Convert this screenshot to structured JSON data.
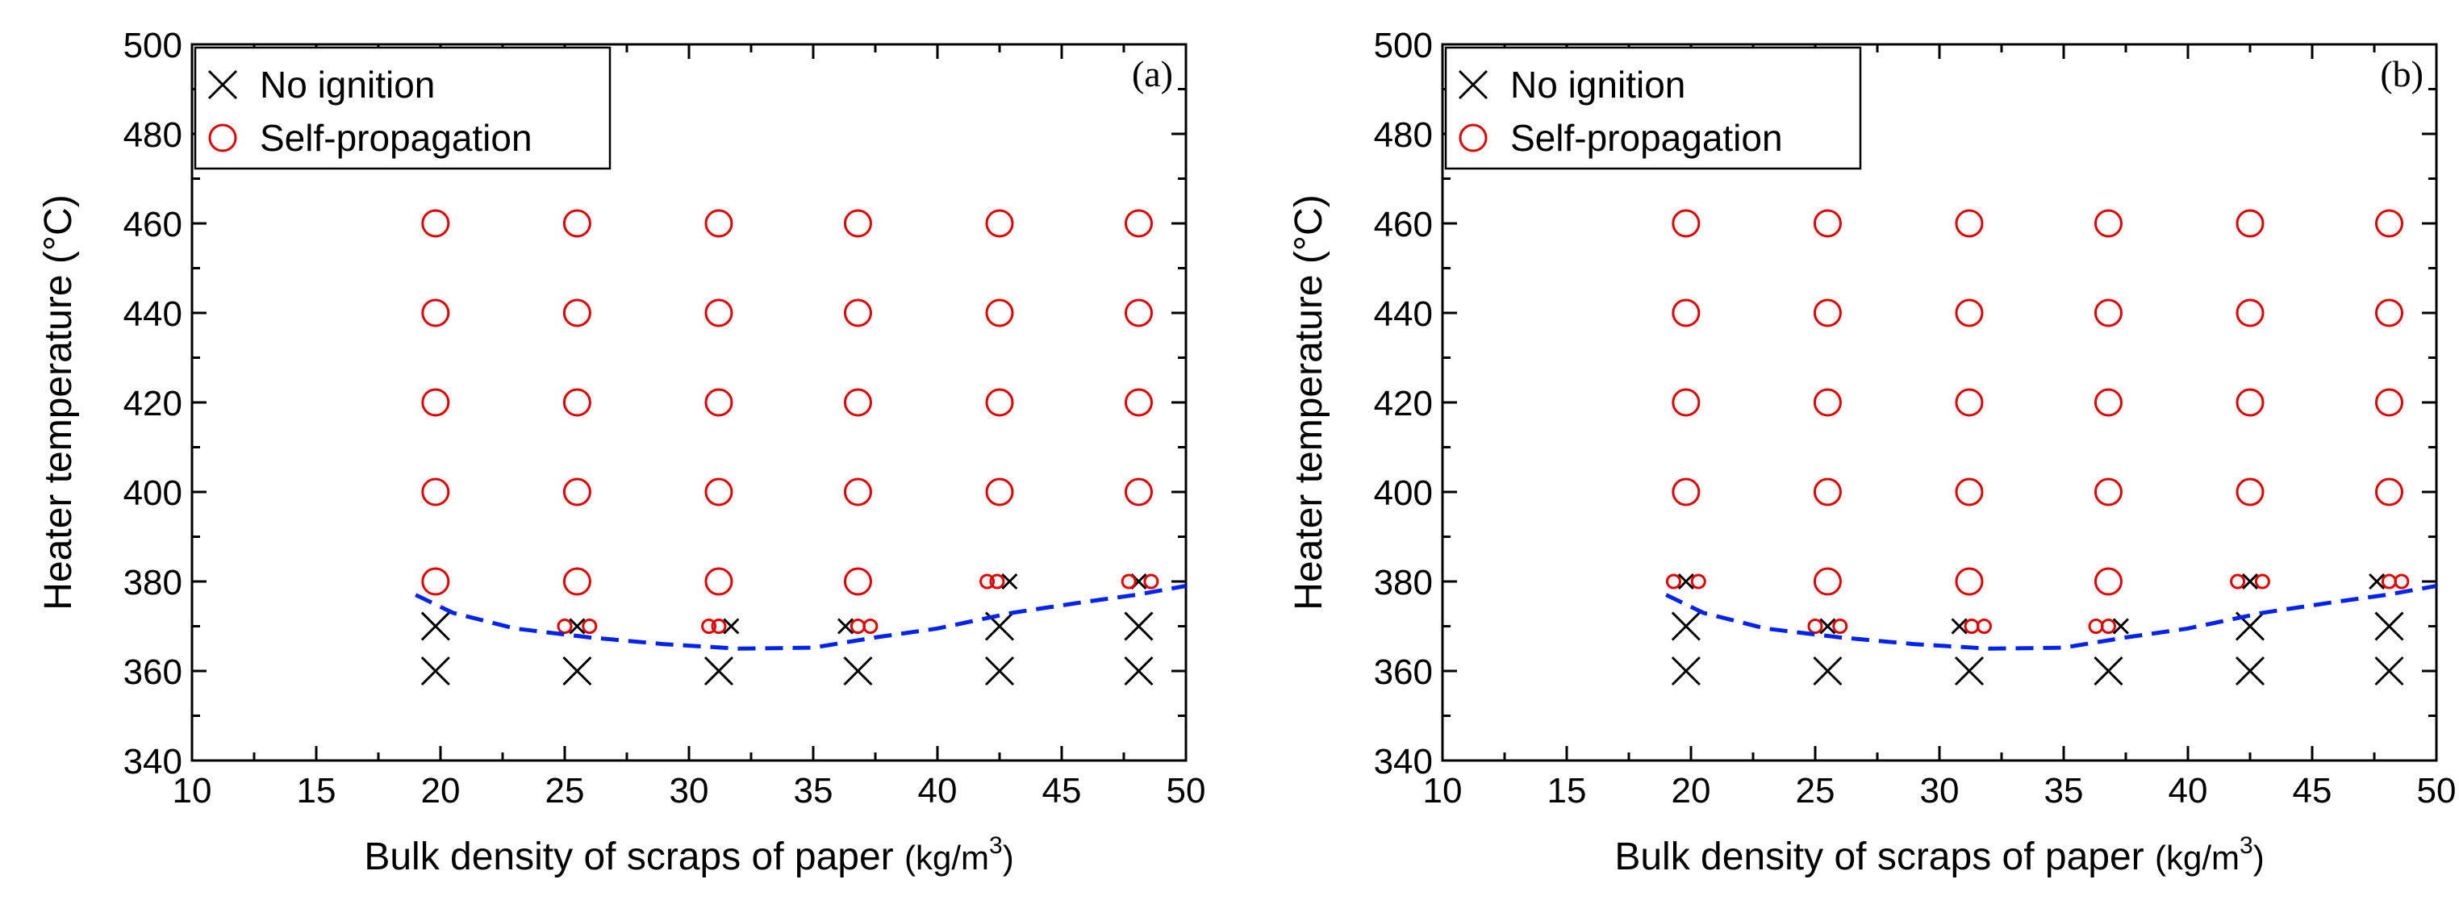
{
  "chart_data": [
    {
      "type": "scatter",
      "panel_label": "(a)",
      "xlabel": "Bulk density of scraps of paper",
      "xlabel_unit_prefix": "(kg/m",
      "xlabel_unit_sup": "3",
      "xlabel_unit_suffix": ")",
      "ylabel": "Heater temperature (°C)",
      "xlim": [
        10,
        50
      ],
      "ylim": [
        340,
        500
      ],
      "xticks": [
        "10",
        "15",
        "20",
        "25",
        "30",
        "35",
        "40",
        "45",
        "50"
      ],
      "yticks": [
        "340",
        "360",
        "380",
        "400",
        "420",
        "440",
        "460",
        "480",
        "500"
      ],
      "legend_position": "top-left",
      "legend": {
        "no_ignition": "No ignition",
        "self_propagation": "Self-propagation"
      },
      "series": [
        {
          "name": "No ignition",
          "marker": "cross",
          "points": [
            {
              "x": 19.8,
              "y": 360,
              "size": "large"
            },
            {
              "x": 19.8,
              "y": 370,
              "size": "large"
            },
            {
              "x": 25.5,
              "y": 360,
              "size": "large"
            },
            {
              "x": 25.5,
              "y": 370,
              "size": "small"
            },
            {
              "x": 31.2,
              "y": 360,
              "size": "large"
            },
            {
              "x": 31.7,
              "y": 370,
              "size": "small"
            },
            {
              "x": 36.8,
              "y": 360,
              "size": "large"
            },
            {
              "x": 36.3,
              "y": 370,
              "size": "small"
            },
            {
              "x": 42.5,
              "y": 360,
              "size": "large"
            },
            {
              "x": 42.5,
              "y": 370,
              "size": "large"
            },
            {
              "x": 42.9,
              "y": 380,
              "size": "small"
            },
            {
              "x": 48.1,
              "y": 360,
              "size": "large"
            },
            {
              "x": 48.1,
              "y": 370,
              "size": "large"
            },
            {
              "x": 48.1,
              "y": 380,
              "size": "small"
            }
          ]
        },
        {
          "name": "Self-propagation",
          "marker": "circle",
          "points": [
            {
              "x": 19.8,
              "y": 380,
              "size": "large"
            },
            {
              "x": 19.8,
              "y": 400,
              "size": "large"
            },
            {
              "x": 19.8,
              "y": 420,
              "size": "large"
            },
            {
              "x": 19.8,
              "y": 440,
              "size": "large"
            },
            {
              "x": 19.8,
              "y": 460,
              "size": "large"
            },
            {
              "x": 25.5,
              "y": 380,
              "size": "large"
            },
            {
              "x": 25.5,
              "y": 400,
              "size": "large"
            },
            {
              "x": 25.5,
              "y": 420,
              "size": "large"
            },
            {
              "x": 25.5,
              "y": 440,
              "size": "large"
            },
            {
              "x": 25.5,
              "y": 460,
              "size": "large"
            },
            {
              "x": 31.2,
              "y": 380,
              "size": "large"
            },
            {
              "x": 31.2,
              "y": 400,
              "size": "large"
            },
            {
              "x": 31.2,
              "y": 420,
              "size": "large"
            },
            {
              "x": 31.2,
              "y": 440,
              "size": "large"
            },
            {
              "x": 31.2,
              "y": 460,
              "size": "large"
            },
            {
              "x": 36.8,
              "y": 380,
              "size": "large"
            },
            {
              "x": 36.8,
              "y": 400,
              "size": "large"
            },
            {
              "x": 36.8,
              "y": 420,
              "size": "large"
            },
            {
              "x": 36.8,
              "y": 440,
              "size": "large"
            },
            {
              "x": 36.8,
              "y": 460,
              "size": "large"
            },
            {
              "x": 42.5,
              "y": 400,
              "size": "large"
            },
            {
              "x": 42.5,
              "y": 420,
              "size": "large"
            },
            {
              "x": 42.5,
              "y": 440,
              "size": "large"
            },
            {
              "x": 42.5,
              "y": 460,
              "size": "large"
            },
            {
              "x": 48.1,
              "y": 400,
              "size": "large"
            },
            {
              "x": 48.1,
              "y": 420,
              "size": "large"
            },
            {
              "x": 48.1,
              "y": 440,
              "size": "large"
            },
            {
              "x": 48.1,
              "y": 460,
              "size": "large"
            },
            {
              "x": 25.0,
              "y": 370,
              "size": "small"
            },
            {
              "x": 26.0,
              "y": 370,
              "size": "small"
            },
            {
              "x": 30.8,
              "y": 370,
              "size": "small"
            },
            {
              "x": 31.2,
              "y": 370,
              "size": "small"
            },
            {
              "x": 36.8,
              "y": 370,
              "size": "small"
            },
            {
              "x": 37.3,
              "y": 370,
              "size": "small"
            },
            {
              "x": 42.0,
              "y": 380,
              "size": "small"
            },
            {
              "x": 42.4,
              "y": 380,
              "size": "small"
            },
            {
              "x": 47.7,
              "y": 380,
              "size": "small"
            },
            {
              "x": 48.6,
              "y": 380,
              "size": "small"
            }
          ]
        },
        {
          "name": "Ignition boundary",
          "marker": "dashed-line",
          "points": [
            {
              "x": 19.0,
              "y": 377
            },
            {
              "x": 20.5,
              "y": 373
            },
            {
              "x": 23.0,
              "y": 369.5
            },
            {
              "x": 26.0,
              "y": 367.5
            },
            {
              "x": 29.0,
              "y": 366
            },
            {
              "x": 32.0,
              "y": 365
            },
            {
              "x": 35.0,
              "y": 365.2
            },
            {
              "x": 37.5,
              "y": 367.5
            },
            {
              "x": 40.0,
              "y": 369.5
            },
            {
              "x": 43.0,
              "y": 373
            },
            {
              "x": 46.0,
              "y": 375.5
            },
            {
              "x": 48.0,
              "y": 377
            },
            {
              "x": 50.0,
              "y": 379
            }
          ]
        }
      ]
    },
    {
      "type": "scatter",
      "panel_label": "(b)",
      "xlabel": "Bulk density of scraps of paper",
      "xlabel_unit_prefix": "(kg/m",
      "xlabel_unit_sup": "3",
      "xlabel_unit_suffix": ")",
      "ylabel": "Heater temperature (°C)",
      "xlim": [
        10,
        50
      ],
      "ylim": [
        340,
        500
      ],
      "xticks": [
        "10",
        "15",
        "20",
        "25",
        "30",
        "35",
        "40",
        "45",
        "50"
      ],
      "yticks": [
        "340",
        "360",
        "380",
        "400",
        "420",
        "440",
        "460",
        "480",
        "500"
      ],
      "legend_position": "top-left",
      "legend": {
        "no_ignition": "No ignition",
        "self_propagation": "Self-propagation"
      },
      "series": [
        {
          "name": "No ignition",
          "marker": "cross",
          "points": [
            {
              "x": 19.8,
              "y": 360,
              "size": "large"
            },
            {
              "x": 19.8,
              "y": 370,
              "size": "large"
            },
            {
              "x": 19.8,
              "y": 380,
              "size": "small"
            },
            {
              "x": 25.5,
              "y": 360,
              "size": "large"
            },
            {
              "x": 25.5,
              "y": 370,
              "size": "small"
            },
            {
              "x": 31.2,
              "y": 360,
              "size": "large"
            },
            {
              "x": 30.8,
              "y": 370,
              "size": "small"
            },
            {
              "x": 36.8,
              "y": 360,
              "size": "large"
            },
            {
              "x": 37.3,
              "y": 370,
              "size": "small"
            },
            {
              "x": 42.5,
              "y": 360,
              "size": "large"
            },
            {
              "x": 42.5,
              "y": 370,
              "size": "large"
            },
            {
              "x": 42.5,
              "y": 380,
              "size": "small"
            },
            {
              "x": 48.1,
              "y": 360,
              "size": "large"
            },
            {
              "x": 48.1,
              "y": 370,
              "size": "large"
            },
            {
              "x": 47.6,
              "y": 380,
              "size": "small"
            }
          ]
        },
        {
          "name": "Self-propagation",
          "marker": "circle",
          "points": [
            {
              "x": 19.8,
              "y": 400,
              "size": "large"
            },
            {
              "x": 19.8,
              "y": 420,
              "size": "large"
            },
            {
              "x": 19.8,
              "y": 440,
              "size": "large"
            },
            {
              "x": 19.8,
              "y": 460,
              "size": "large"
            },
            {
              "x": 25.5,
              "y": 380,
              "size": "large"
            },
            {
              "x": 25.5,
              "y": 400,
              "size": "large"
            },
            {
              "x": 25.5,
              "y": 420,
              "size": "large"
            },
            {
              "x": 25.5,
              "y": 440,
              "size": "large"
            },
            {
              "x": 25.5,
              "y": 460,
              "size": "large"
            },
            {
              "x": 31.2,
              "y": 380,
              "size": "large"
            },
            {
              "x": 31.2,
              "y": 400,
              "size": "large"
            },
            {
              "x": 31.2,
              "y": 420,
              "size": "large"
            },
            {
              "x": 31.2,
              "y": 440,
              "size": "large"
            },
            {
              "x": 31.2,
              "y": 460,
              "size": "large"
            },
            {
              "x": 36.8,
              "y": 380,
              "size": "large"
            },
            {
              "x": 36.8,
              "y": 400,
              "size": "large"
            },
            {
              "x": 36.8,
              "y": 420,
              "size": "large"
            },
            {
              "x": 36.8,
              "y": 440,
              "size": "large"
            },
            {
              "x": 36.8,
              "y": 460,
              "size": "large"
            },
            {
              "x": 42.5,
              "y": 400,
              "size": "large"
            },
            {
              "x": 42.5,
              "y": 420,
              "size": "large"
            },
            {
              "x": 42.5,
              "y": 440,
              "size": "large"
            },
            {
              "x": 42.5,
              "y": 460,
              "size": "large"
            },
            {
              "x": 48.1,
              "y": 400,
              "size": "large"
            },
            {
              "x": 48.1,
              "y": 420,
              "size": "large"
            },
            {
              "x": 48.1,
              "y": 440,
              "size": "large"
            },
            {
              "x": 48.1,
              "y": 460,
              "size": "large"
            },
            {
              "x": 19.3,
              "y": 380,
              "size": "small"
            },
            {
              "x": 20.3,
              "y": 380,
              "size": "small"
            },
            {
              "x": 25.0,
              "y": 370,
              "size": "small"
            },
            {
              "x": 26.0,
              "y": 370,
              "size": "small"
            },
            {
              "x": 31.3,
              "y": 370,
              "size": "small"
            },
            {
              "x": 31.8,
              "y": 370,
              "size": "small"
            },
            {
              "x": 36.3,
              "y": 370,
              "size": "small"
            },
            {
              "x": 36.8,
              "y": 370,
              "size": "small"
            },
            {
              "x": 42.0,
              "y": 380,
              "size": "small"
            },
            {
              "x": 43.0,
              "y": 380,
              "size": "small"
            },
            {
              "x": 48.1,
              "y": 380,
              "size": "small"
            },
            {
              "x": 48.6,
              "y": 380,
              "size": "small"
            }
          ]
        },
        {
          "name": "Ignition boundary",
          "marker": "dashed-line",
          "points": [
            {
              "x": 19.0,
              "y": 377
            },
            {
              "x": 20.5,
              "y": 373
            },
            {
              "x": 23.0,
              "y": 369.5
            },
            {
              "x": 26.0,
              "y": 367.5
            },
            {
              "x": 29.0,
              "y": 366
            },
            {
              "x": 32.0,
              "y": 365
            },
            {
              "x": 35.0,
              "y": 365.2
            },
            {
              "x": 37.5,
              "y": 367.5
            },
            {
              "x": 40.0,
              "y": 369.5
            },
            {
              "x": 43.0,
              "y": 373
            },
            {
              "x": 46.0,
              "y": 375.5
            },
            {
              "x": 48.0,
              "y": 377
            },
            {
              "x": 50.0,
              "y": 379
            }
          ]
        }
      ]
    }
  ]
}
